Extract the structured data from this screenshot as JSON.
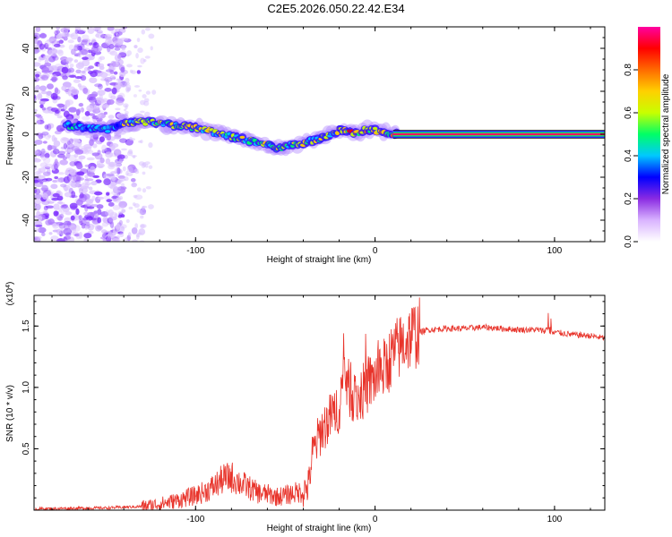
{
  "title": "C2E5.2026.050.22.42.E34",
  "chart_data": [
    {
      "type": "heatmap",
      "name": "spectrogram",
      "xlabel": "Height of straight line (km)",
      "ylabel": "Frequency (Hz)",
      "xlim": [
        -190,
        128
      ],
      "ylim": [
        -50,
        50
      ],
      "xticks": [
        -100,
        0,
        100
      ],
      "yticks": [
        -40,
        -20,
        0,
        20,
        40
      ],
      "xtick_labels": [
        "-100",
        "0",
        "100"
      ],
      "ytick_labels": [
        "-40",
        "-20",
        "0",
        "20",
        "40"
      ],
      "colorbar": {
        "label": "Normalized spectral amplitude",
        "range": [
          0,
          1
        ],
        "ticks": [
          0.0,
          0.2,
          0.4,
          0.6,
          0.8
        ],
        "tick_labels": [
          "0.0",
          "0.2",
          "0.4",
          "0.6",
          "0.8"
        ],
        "colors": [
          "#ffffff",
          "#d9b3ff",
          "#8a2be2",
          "#0000ff",
          "#00c8ff",
          "#00ff66",
          "#c8ff00",
          "#ffd000",
          "#ff6a00",
          "#ff0000",
          "#ff00a0"
        ]
      },
      "ridge": {
        "x": [
          -170,
          -160,
          -150,
          -140,
          -130,
          -120,
          -110,
          -100,
          -90,
          -80,
          -70,
          -60,
          -55,
          -50,
          -45,
          -40,
          -35,
          -30,
          -25,
          -20,
          -15,
          -10,
          -5,
          0,
          5,
          10,
          128
        ],
        "freq": [
          4,
          3,
          2,
          5,
          6,
          5,
          4,
          3,
          1,
          -1,
          -3,
          -5,
          -7,
          -6,
          -5,
          -4,
          -3,
          -2,
          0,
          2,
          1,
          1,
          2,
          2,
          1,
          0,
          0
        ]
      }
    },
    {
      "type": "line",
      "name": "snr",
      "xlabel": "Height of straight line (km)",
      "ylabel": "SNR (10 * v/v)",
      "scale_note": "(x10^4)",
      "scale_prefix": "(x10",
      "scale_exp": "4",
      "scale_suffix": ")",
      "xlim": [
        -190,
        128
      ],
      "ylim": [
        0,
        17500
      ],
      "xticks": [
        -100,
        0,
        100
      ],
      "yticks": [
        5000,
        10000,
        15000
      ],
      "xtick_labels": [
        "-100",
        "0",
        "100"
      ],
      "ytick_labels": [
        "0.5",
        "1.0",
        "1.5"
      ],
      "color": "#e8332a",
      "series": [
        {
          "name": "SNR",
          "x": [
            -190,
            -170,
            -150,
            -130,
            -120,
            -110,
            -100,
            -95,
            -90,
            -85,
            -80,
            -75,
            -70,
            -65,
            -60,
            -55,
            -50,
            -45,
            -40,
            -37,
            -35,
            -30,
            -25,
            -20,
            -17,
            -15,
            -10,
            -5,
            0,
            5,
            10,
            15,
            20,
            25,
            30,
            40,
            50,
            60,
            70,
            80,
            90,
            95,
            97,
            99,
            100,
            110,
            120,
            128
          ],
          "values": [
            100,
            150,
            180,
            300,
            500,
            800,
            1200,
            1500,
            1900,
            2500,
            2700,
            2200,
            1800,
            1400,
            1300,
            1100,
            1200,
            1400,
            1500,
            2000,
            4500,
            6500,
            7500,
            8500,
            11500,
            10000,
            9000,
            10000,
            10800,
            11500,
            12700,
            13500,
            14200,
            14500,
            14700,
            14800,
            14800,
            14900,
            14800,
            14700,
            14700,
            14600,
            15500,
            14300,
            14500,
            14300,
            14200,
            14000
          ]
        }
      ]
    }
  ]
}
